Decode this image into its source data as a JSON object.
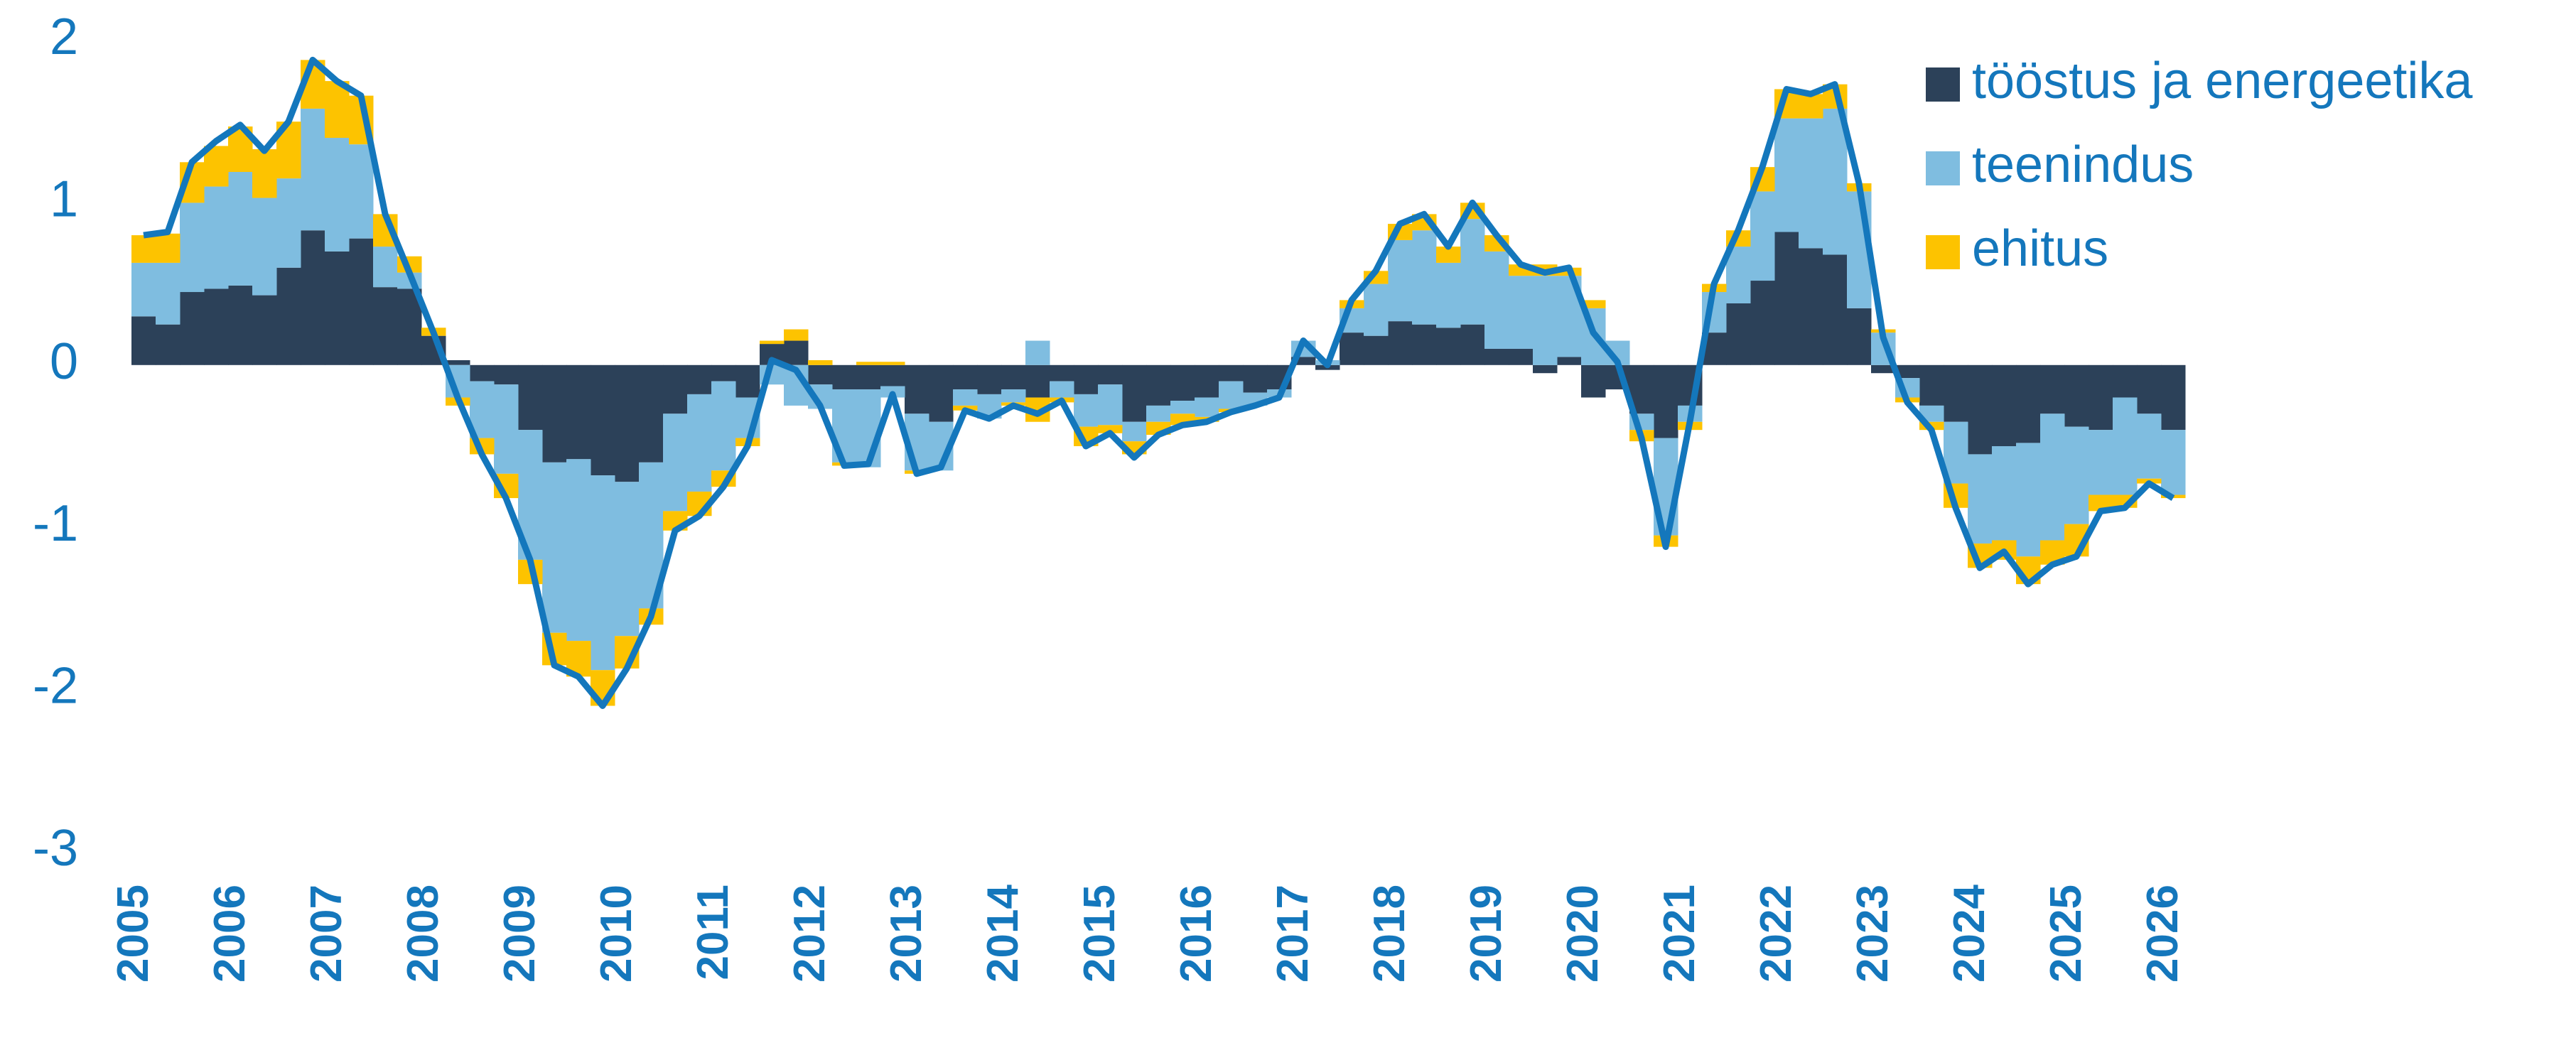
{
  "chart_data": {
    "type": "bar",
    "stacked": true,
    "categories": [
      "2005",
      null,
      null,
      null,
      "2006",
      null,
      null,
      null,
      "2007",
      null,
      null,
      null,
      "2008",
      null,
      null,
      null,
      "2009",
      null,
      null,
      null,
      "2010",
      null,
      null,
      null,
      "2011",
      null,
      null,
      null,
      "2012",
      null,
      null,
      null,
      "2013",
      null,
      null,
      null,
      "2014",
      null,
      null,
      null,
      "2015",
      null,
      null,
      null,
      "2016",
      null,
      null,
      null,
      "2017",
      null,
      null,
      null,
      "2018",
      null,
      null,
      null,
      "2019",
      null,
      null,
      null,
      "2020",
      null,
      null,
      null,
      "2021",
      null,
      null,
      null,
      "2022",
      null,
      null,
      null,
      "2023",
      null,
      null,
      null,
      "2024",
      null,
      null,
      null,
      "2025",
      null,
      null,
      null,
      "2026"
    ],
    "ylim": [
      -3,
      2
    ],
    "yticks": [
      2,
      1,
      0,
      -1,
      -2,
      -3
    ],
    "grid": false,
    "legend": "top-right",
    "series": [
      {
        "name": "tööstus ja energeetika",
        "color": "#2c4159",
        "values": [
          0.3,
          0.25,
          0.45,
          0.47,
          0.49,
          0.43,
          0.6,
          0.83,
          0.7,
          0.78,
          0.48,
          0.47,
          0.18,
          0.03,
          -0.1,
          -0.12,
          -0.4,
          -0.6,
          -0.58,
          -0.68,
          -0.72,
          -0.6,
          -0.3,
          -0.18,
          -0.1,
          -0.2,
          0.13,
          0.15,
          -0.12,
          -0.15,
          -0.15,
          -0.13,
          -0.3,
          -0.35,
          -0.15,
          -0.18,
          -0.15,
          -0.2,
          -0.1,
          -0.18,
          -0.12,
          -0.35,
          -0.25,
          -0.22,
          -0.2,
          -0.1,
          -0.17,
          -0.15,
          0.05,
          -0.03,
          0.2,
          0.18,
          0.27,
          0.25,
          0.23,
          0.25,
          0.1,
          0.1,
          -0.05,
          0.05,
          -0.2,
          -0.15,
          -0.3,
          -0.45,
          -0.25,
          0.2,
          0.38,
          0.52,
          0.82,
          0.72,
          0.68,
          0.35,
          -0.05,
          -0.08,
          -0.25,
          -0.35,
          -0.55,
          -0.5,
          -0.48,
          -0.3,
          -0.38,
          -0.4,
          -0.2,
          -0.3,
          -0.4
        ]
      },
      {
        "name": "teenindus",
        "color": "#7fbde0",
        "values": [
          0.33,
          0.38,
          0.55,
          0.63,
          0.7,
          0.6,
          0.55,
          0.75,
          0.7,
          0.58,
          0.25,
          0.1,
          0,
          -0.2,
          -0.35,
          -0.55,
          -0.8,
          -1.05,
          -1.12,
          -1.2,
          -0.95,
          -0.9,
          -0.6,
          -0.6,
          -0.55,
          -0.25,
          -0.12,
          -0.25,
          -0.15,
          -0.45,
          -0.48,
          -0.07,
          -0.35,
          -0.3,
          -0.1,
          -0.15,
          -0.08,
          0.15,
          -0.1,
          -0.2,
          -0.25,
          -0.12,
          -0.1,
          -0.08,
          -0.12,
          -0.17,
          -0.08,
          -0.05,
          0.1,
          0.03,
          0.15,
          0.32,
          0.5,
          0.58,
          0.4,
          0.65,
          0.6,
          0.45,
          0.55,
          0.5,
          0.35,
          0.15,
          -0.1,
          -0.6,
          -0.1,
          0.25,
          0.35,
          0.55,
          0.7,
          0.8,
          0.9,
          0.72,
          0.2,
          -0.12,
          -0.1,
          -0.38,
          -0.55,
          -0.58,
          -0.7,
          -0.78,
          -0.6,
          -0.4,
          -0.6,
          -0.4,
          -0.4
        ]
      },
      {
        "name": "ehitus",
        "color": "#fdc300",
        "values": [
          0.17,
          0.18,
          0.25,
          0.25,
          0.28,
          0.3,
          0.35,
          0.3,
          0.35,
          0.3,
          0.2,
          0.1,
          0.05,
          -0.05,
          -0.1,
          -0.15,
          -0.15,
          -0.2,
          -0.22,
          -0.22,
          -0.2,
          -0.1,
          -0.12,
          -0.15,
          -0.1,
          -0.05,
          0.02,
          0.07,
          0.03,
          -0.02,
          0.02,
          0.02,
          -0.02,
          0,
          -0.03,
          0,
          -0.02,
          -0.15,
          -0.03,
          -0.12,
          -0.05,
          -0.08,
          -0.08,
          -0.07,
          -0.03,
          -0.02,
          0,
          0,
          0,
          0,
          0.05,
          0.08,
          0.1,
          0.1,
          0.1,
          0.1,
          0.1,
          0.07,
          0.07,
          0.05,
          0.05,
          0,
          -0.07,
          -0.07,
          -0.05,
          0.05,
          0.1,
          0.15,
          0.18,
          0.15,
          0.15,
          0.05,
          0.02,
          -0.03,
          -0.05,
          -0.15,
          -0.15,
          -0.12,
          -0.17,
          -0.15,
          -0.2,
          -0.1,
          -0.08,
          -0.03,
          -0.02
        ]
      },
      {
        "type": "line",
        "color": "#1477bc",
        "values": [
          0.8,
          0.82,
          1.25,
          1.38,
          1.48,
          1.32,
          1.5,
          1.88,
          1.75,
          1.66,
          0.93,
          0.57,
          0.2,
          -0.2,
          -0.55,
          -0.82,
          -1.2,
          -1.85,
          -1.92,
          -2.1,
          -1.87,
          -1.55,
          -1.02,
          -0.93,
          -0.75,
          -0.5,
          0.03,
          -0.03,
          -0.25,
          -0.62,
          -0.61,
          -0.18,
          -0.67,
          -0.63,
          -0.28,
          -0.33,
          -0.25,
          -0.3,
          -0.22,
          -0.5,
          -0.42,
          -0.57,
          -0.43,
          -0.37,
          -0.35,
          -0.29,
          -0.25,
          -0.2,
          0.15,
          0,
          0.4,
          0.58,
          0.87,
          0.93,
          0.73,
          1.0,
          0.8,
          0.62,
          0.57,
          0.6,
          0.2,
          0.02,
          -0.45,
          -1.12,
          -0.35,
          0.5,
          0.83,
          1.22,
          1.7,
          1.67,
          1.73,
          1.12,
          0.17,
          -0.23,
          -0.4,
          -0.88,
          -1.25,
          -1.15,
          -1.35,
          -1.23,
          -1.18,
          -0.9,
          -0.88,
          -0.73,
          -0.82
        ]
      }
    ]
  }
}
